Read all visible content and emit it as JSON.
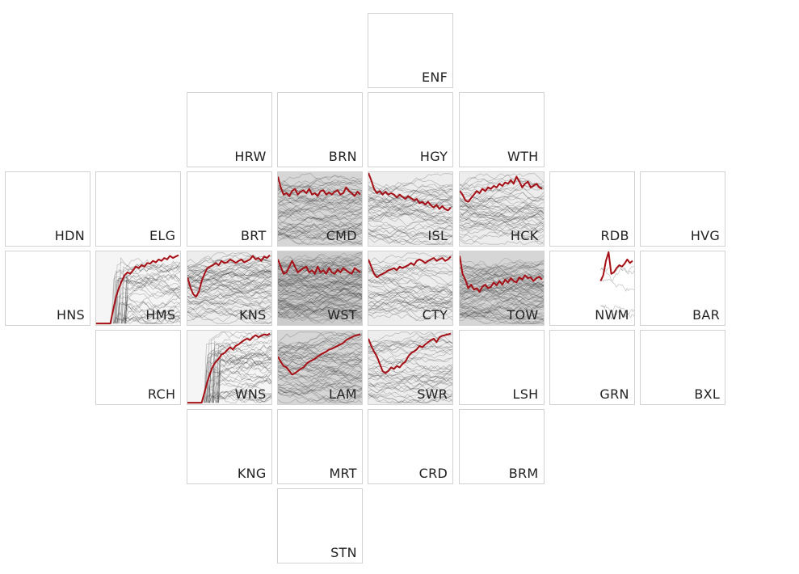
{
  "colors": {
    "highlight": "#a50f15",
    "context": "#333333",
    "border": "#d2d2d2"
  },
  "chart_data": {
    "type": "line",
    "title": "",
    "cells": [
      {
        "code": "ENF",
        "row": 0,
        "col": 4,
        "has_data": false
      },
      {
        "code": "HRW",
        "row": 1,
        "col": 2,
        "has_data": false
      },
      {
        "code": "BRN",
        "row": 1,
        "col": 3,
        "has_data": false
      },
      {
        "code": "HGY",
        "row": 1,
        "col": 4,
        "has_data": false
      },
      {
        "code": "WTH",
        "row": 1,
        "col": 5,
        "has_data": false
      },
      {
        "code": "HDN",
        "row": 2,
        "col": 0,
        "has_data": false
      },
      {
        "code": "ELG",
        "row": 2,
        "col": 1,
        "has_data": false
      },
      {
        "code": "BRT",
        "row": 2,
        "col": 2,
        "has_data": false
      },
      {
        "code": "CMD",
        "row": 2,
        "col": 3,
        "has_data": true,
        "bg": 0.16,
        "density": 55,
        "line": [
          0.05,
          0.2,
          0.3,
          0.28,
          0.32,
          0.25,
          0.22,
          0.3,
          0.26,
          0.24,
          0.28,
          0.22,
          0.3,
          0.28,
          0.32,
          0.25,
          0.24,
          0.3,
          0.27,
          0.3,
          0.26,
          0.24,
          0.3,
          0.28,
          0.2,
          0.25,
          0.28,
          0.32,
          0.26,
          0.3
        ]
      },
      {
        "code": "ISL",
        "row": 2,
        "col": 4,
        "has_data": true,
        "bg": 0.07,
        "density": 45,
        "line": [
          0.0,
          0.1,
          0.22,
          0.28,
          0.25,
          0.3,
          0.26,
          0.3,
          0.28,
          0.3,
          0.34,
          0.3,
          0.33,
          0.36,
          0.32,
          0.35,
          0.38,
          0.36,
          0.42,
          0.4,
          0.44,
          0.4,
          0.45,
          0.48,
          0.44,
          0.5,
          0.46,
          0.5,
          0.52,
          0.48
        ]
      },
      {
        "code": "HCK",
        "row": 2,
        "col": 5,
        "has_data": true,
        "bg": 0.07,
        "density": 45,
        "line": [
          0.25,
          0.3,
          0.38,
          0.4,
          0.35,
          0.3,
          0.25,
          0.28,
          0.22,
          0.25,
          0.2,
          0.22,
          0.18,
          0.2,
          0.15,
          0.18,
          0.13,
          0.15,
          0.1,
          0.15,
          0.05,
          0.12,
          0.2,
          0.15,
          0.12,
          0.2,
          0.18,
          0.15,
          0.2,
          0.22
        ]
      },
      {
        "code": "RDB",
        "row": 2,
        "col": 6,
        "has_data": false
      },
      {
        "code": "HVG",
        "row": 2,
        "col": 7,
        "has_data": false
      },
      {
        "code": "HNS",
        "row": 3,
        "col": 0,
        "has_data": false
      },
      {
        "code": "HMS",
        "row": 3,
        "col": 1,
        "has_data": true,
        "bg": 0.04,
        "density": 40,
        "lead": 0.18,
        "line": [
          0.99,
          0.99,
          0.99,
          0.99,
          0.99,
          0.99,
          0.8,
          0.62,
          0.5,
          0.4,
          0.32,
          0.28,
          0.3,
          0.25,
          0.2,
          0.22,
          0.18,
          0.2,
          0.15,
          0.16,
          0.12,
          0.14,
          0.1,
          0.12,
          0.08,
          0.1,
          0.05,
          0.08,
          0.06,
          0.04
        ]
      },
      {
        "code": "KNS",
        "row": 3,
        "col": 2,
        "has_data": true,
        "bg": 0.07,
        "density": 60,
        "line": [
          0.35,
          0.48,
          0.58,
          0.62,
          0.55,
          0.4,
          0.3,
          0.22,
          0.2,
          0.18,
          0.15,
          0.18,
          0.12,
          0.15,
          0.14,
          0.1,
          0.12,
          0.15,
          0.12,
          0.1,
          0.14,
          0.12,
          0.1,
          0.05,
          0.1,
          0.08,
          0.12,
          0.06,
          0.08,
          0.04
        ]
      },
      {
        "code": "WST",
        "row": 3,
        "col": 3,
        "has_data": true,
        "bg": 0.2,
        "density": 110,
        "line": [
          0.1,
          0.2,
          0.3,
          0.28,
          0.2,
          0.12,
          0.2,
          0.28,
          0.25,
          0.22,
          0.2,
          0.28,
          0.25,
          0.3,
          0.2,
          0.28,
          0.25,
          0.3,
          0.22,
          0.28,
          0.3,
          0.24,
          0.28,
          0.22,
          0.25,
          0.28,
          0.3,
          0.22,
          0.25,
          0.28
        ]
      },
      {
        "code": "CTY",
        "row": 3,
        "col": 4,
        "has_data": true,
        "bg": 0.07,
        "density": 40,
        "line": [
          0.1,
          0.2,
          0.3,
          0.35,
          0.32,
          0.3,
          0.28,
          0.25,
          0.24,
          0.22,
          0.25,
          0.2,
          0.22,
          0.2,
          0.18,
          0.15,
          0.18,
          0.12,
          0.1,
          0.12,
          0.15,
          0.12,
          0.1,
          0.08,
          0.12,
          0.1,
          0.08,
          0.12,
          0.1,
          0.06
        ]
      },
      {
        "code": "TOW",
        "row": 3,
        "col": 5,
        "has_data": true,
        "bg": 0.16,
        "density": 90,
        "line": [
          0.05,
          0.3,
          0.38,
          0.5,
          0.45,
          0.52,
          0.5,
          0.55,
          0.48,
          0.45,
          0.5,
          0.48,
          0.42,
          0.46,
          0.4,
          0.45,
          0.38,
          0.42,
          0.36,
          0.4,
          0.42,
          0.35,
          0.38,
          0.32,
          0.36,
          0.35,
          0.4,
          0.36,
          0.34,
          0.38
        ]
      },
      {
        "code": "NWM",
        "row": 3,
        "col": 6,
        "has_data": true,
        "bg": 0.0,
        "density": 5,
        "start": 0.6,
        "line": [
          0.4,
          0.32,
          0.12,
          0.0,
          0.3,
          0.28,
          0.22,
          0.18,
          0.2,
          0.16,
          0.1,
          0.15,
          0.12
        ]
      },
      {
        "code": "BAR",
        "row": 3,
        "col": 7,
        "has_data": false
      },
      {
        "code": "RCH",
        "row": 4,
        "col": 1,
        "has_data": false
      },
      {
        "code": "WNS",
        "row": 4,
        "col": 2,
        "has_data": true,
        "bg": 0.04,
        "density": 45,
        "lead": 0.18,
        "line": [
          0.99,
          0.99,
          0.99,
          0.99,
          0.99,
          0.99,
          0.85,
          0.7,
          0.58,
          0.48,
          0.42,
          0.38,
          0.32,
          0.3,
          0.26,
          0.22,
          0.25,
          0.2,
          0.18,
          0.15,
          0.12,
          0.1,
          0.12,
          0.08,
          0.05,
          0.08,
          0.06,
          0.04,
          0.05,
          0.03
        ]
      },
      {
        "code": "LAM",
        "row": 4,
        "col": 3,
        "has_data": true,
        "bg": 0.16,
        "density": 55,
        "line": [
          0.35,
          0.42,
          0.48,
          0.5,
          0.55,
          0.6,
          0.58,
          0.55,
          0.52,
          0.5,
          0.45,
          0.42,
          0.4,
          0.38,
          0.35,
          0.32,
          0.3,
          0.28,
          0.25,
          0.24,
          0.22,
          0.2,
          0.18,
          0.16,
          0.12,
          0.1,
          0.08,
          0.06,
          0.05,
          0.04
        ]
      },
      {
        "code": "SWR",
        "row": 4,
        "col": 4,
        "has_data": true,
        "bg": 0.07,
        "density": 40,
        "line": [
          0.1,
          0.2,
          0.28,
          0.35,
          0.45,
          0.55,
          0.58,
          0.55,
          0.5,
          0.52,
          0.48,
          0.5,
          0.45,
          0.42,
          0.35,
          0.3,
          0.28,
          0.25,
          0.2,
          0.22,
          0.18,
          0.15,
          0.12,
          0.1,
          0.15,
          0.08,
          0.06,
          0.05,
          0.04,
          0.03
        ]
      },
      {
        "code": "LSH",
        "row": 4,
        "col": 5,
        "has_data": false
      },
      {
        "code": "GRN",
        "row": 4,
        "col": 6,
        "has_data": false
      },
      {
        "code": "BXL",
        "row": 4,
        "col": 7,
        "has_data": false
      },
      {
        "code": "KNG",
        "row": 5,
        "col": 2,
        "has_data": false
      },
      {
        "code": "MRT",
        "row": 5,
        "col": 3,
        "has_data": false
      },
      {
        "code": "CRD",
        "row": 5,
        "col": 4,
        "has_data": false
      },
      {
        "code": "BRM",
        "row": 5,
        "col": 5,
        "has_data": false
      },
      {
        "code": "STN",
        "row": 6,
        "col": 3,
        "has_data": false
      }
    ]
  }
}
